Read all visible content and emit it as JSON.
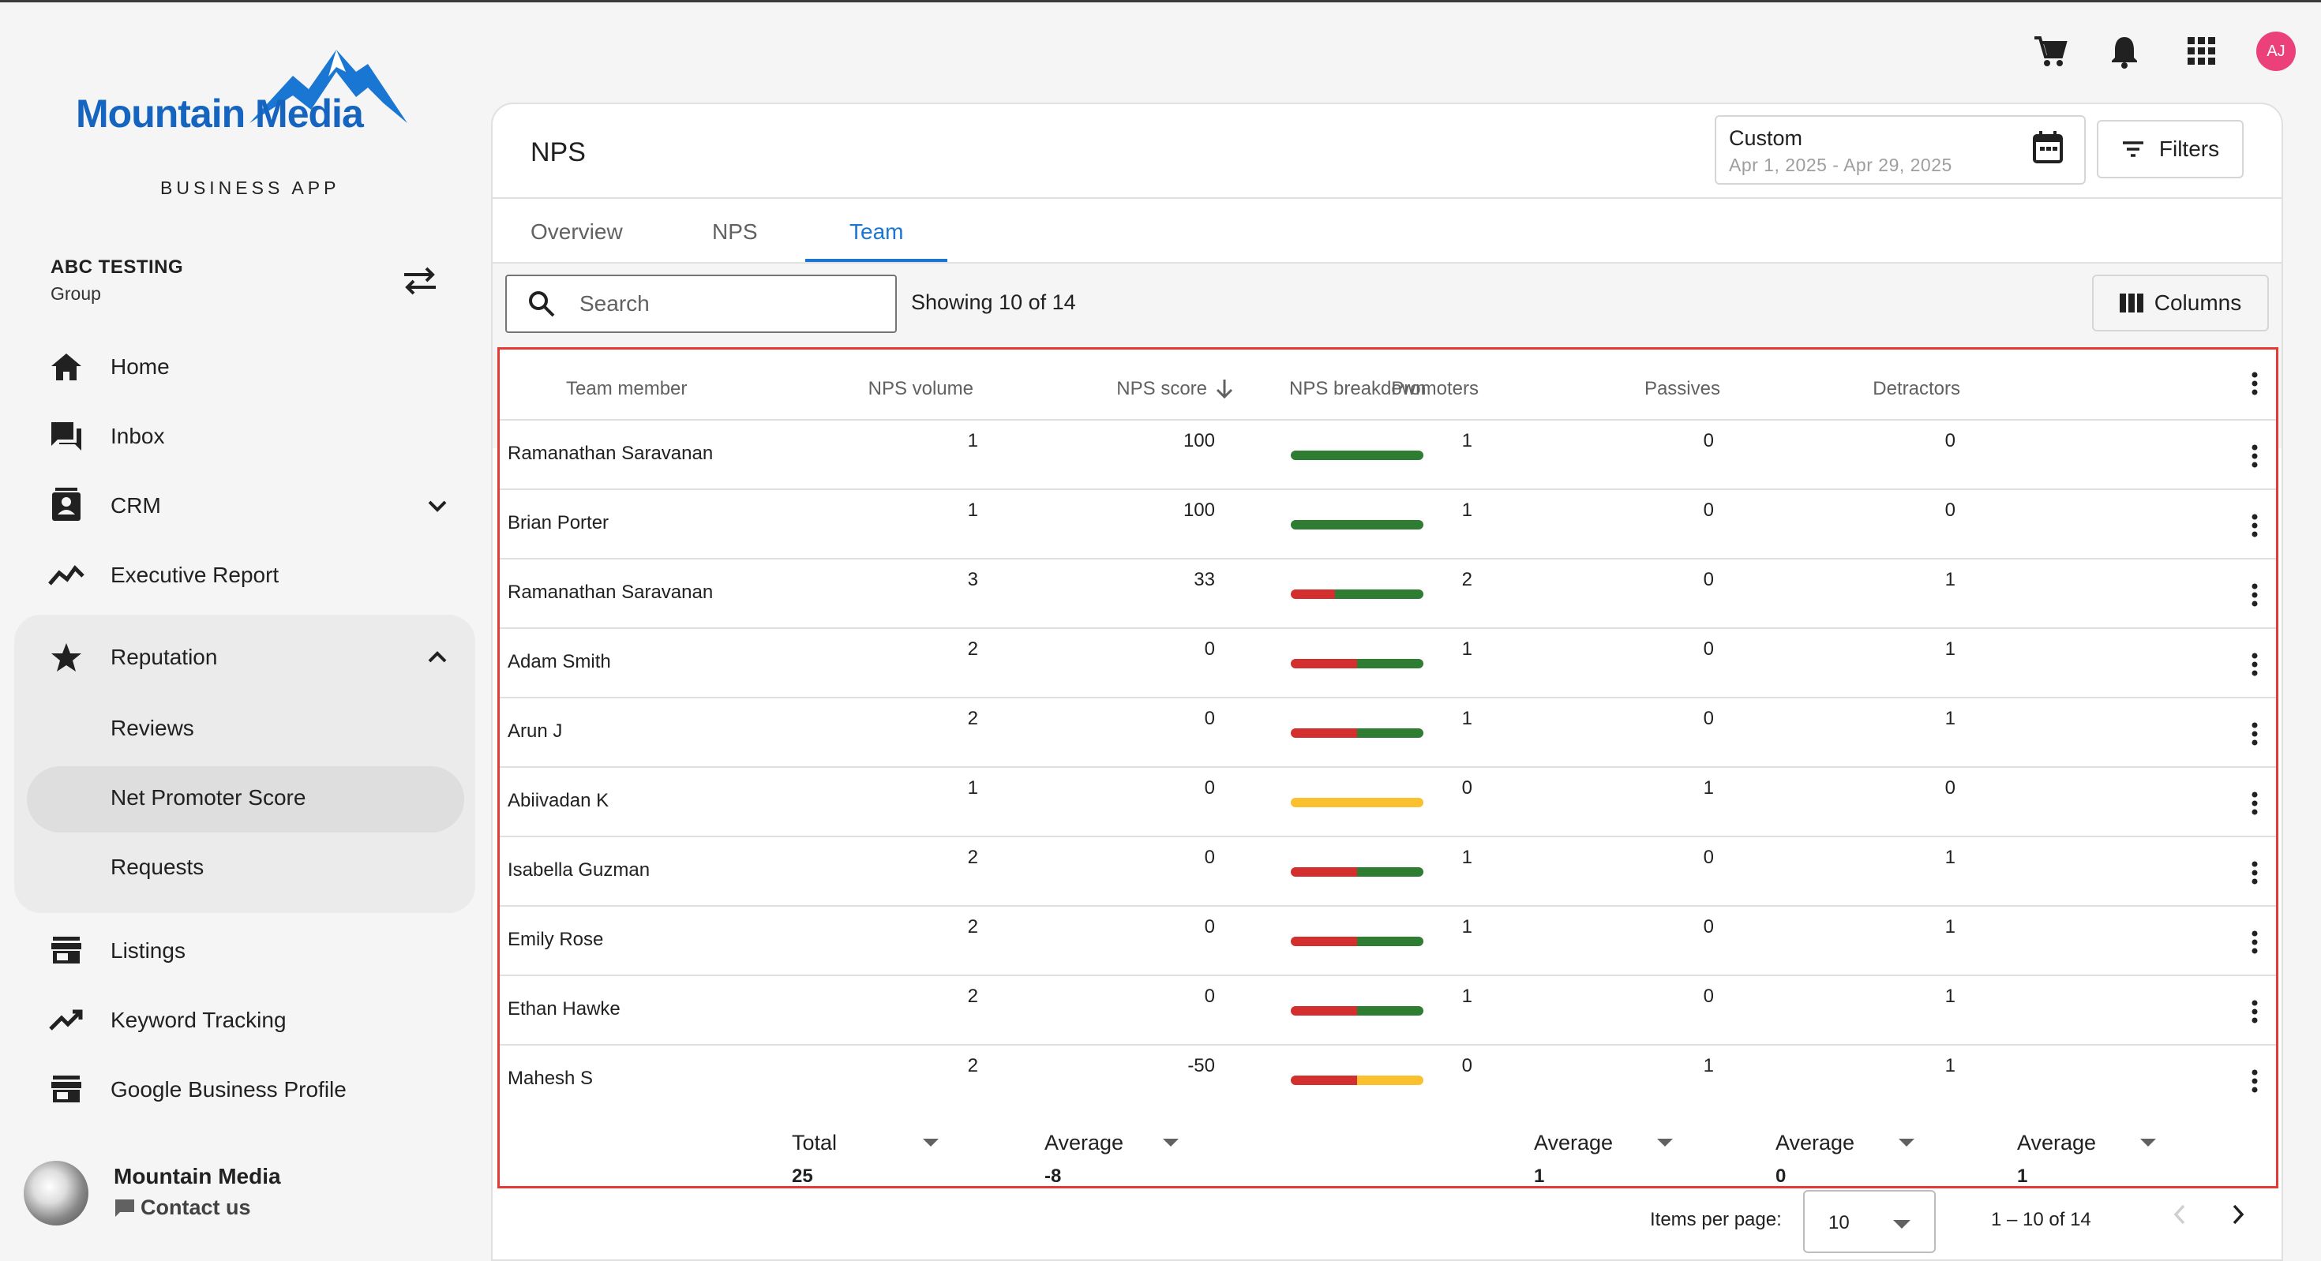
{
  "brand": {
    "logo_text": "Mountain Media",
    "subtitle": "BUSINESS APP",
    "logo_color": "#1565c0"
  },
  "account": {
    "name": "ABC TESTING",
    "type": "Group"
  },
  "sidebar": {
    "items": [
      {
        "label": "Home",
        "icon": "home-icon"
      },
      {
        "label": "Inbox",
        "icon": "inbox-icon"
      },
      {
        "label": "CRM",
        "icon": "contacts-icon"
      },
      {
        "label": "Executive Report",
        "icon": "trend-icon"
      },
      {
        "label": "Reputation",
        "icon": "star-icon"
      },
      {
        "label": "Listings",
        "icon": "store-icon"
      },
      {
        "label": "Keyword Tracking",
        "icon": "trending-up-icon"
      },
      {
        "label": "Google Business Profile",
        "icon": "store-icon"
      }
    ],
    "reputation_sub": [
      "Reviews",
      "Net Promoter Score",
      "Requests"
    ],
    "active_sub": "Net Promoter Score"
  },
  "footer": {
    "title": "Mountain Media",
    "contact": "Contact us"
  },
  "topbar": {
    "avatar_initials": "AJ",
    "avatar_color": "#ec407a"
  },
  "page": {
    "title": "NPS",
    "date_filter": {
      "label": "Custom",
      "range": "Apr 1, 2025 - Apr 29, 2025"
    },
    "filters_label": "Filters",
    "tabs": [
      "Overview",
      "NPS",
      "Team"
    ],
    "active_tab": "Team"
  },
  "toolbar": {
    "search_placeholder": "Search",
    "showing": "Showing 10 of 14",
    "columns_label": "Columns"
  },
  "table": {
    "headers": [
      "Team member",
      "NPS volume",
      "NPS score",
      "NPS breakdown",
      "Promoters",
      "Passives",
      "Detractors"
    ],
    "rows": [
      {
        "name": "Ramanathan Saravanan",
        "volume": "1",
        "score": "100",
        "breakdown": {
          "detractors": 0,
          "passives": 0,
          "promoters": 1
        },
        "promoters": "1",
        "passives": "0",
        "detractors": "0"
      },
      {
        "name": "Brian Porter",
        "volume": "1",
        "score": "100",
        "breakdown": {
          "detractors": 0,
          "passives": 0,
          "promoters": 1
        },
        "promoters": "1",
        "passives": "0",
        "detractors": "0"
      },
      {
        "name": "Ramanathan Saravanan",
        "volume": "3",
        "score": "33",
        "breakdown": {
          "detractors": 1,
          "passives": 0,
          "promoters": 2
        },
        "promoters": "2",
        "passives": "0",
        "detractors": "1"
      },
      {
        "name": "Adam Smith",
        "volume": "2",
        "score": "0",
        "breakdown": {
          "detractors": 1,
          "passives": 0,
          "promoters": 1
        },
        "promoters": "1",
        "passives": "0",
        "detractors": "1"
      },
      {
        "name": "Arun J",
        "volume": "2",
        "score": "0",
        "breakdown": {
          "detractors": 1,
          "passives": 0,
          "promoters": 1
        },
        "promoters": "1",
        "passives": "0",
        "detractors": "1"
      },
      {
        "name": "Abiivadan K",
        "volume": "1",
        "score": "0",
        "breakdown": {
          "detractors": 0,
          "passives": 1,
          "promoters": 0
        },
        "promoters": "0",
        "passives": "1",
        "detractors": "0"
      },
      {
        "name": "Isabella Guzman",
        "volume": "2",
        "score": "0",
        "breakdown": {
          "detractors": 1,
          "passives": 0,
          "promoters": 1
        },
        "promoters": "1",
        "passives": "0",
        "detractors": "1"
      },
      {
        "name": "Emily Rose",
        "volume": "2",
        "score": "0",
        "breakdown": {
          "detractors": 1,
          "passives": 0,
          "promoters": 1
        },
        "promoters": "1",
        "passives": "0",
        "detractors": "1"
      },
      {
        "name": "Ethan Hawke",
        "volume": "2",
        "score": "0",
        "breakdown": {
          "detractors": 1,
          "passives": 0,
          "promoters": 1
        },
        "promoters": "1",
        "passives": "0",
        "detractors": "1"
      },
      {
        "name": "Mahesh S",
        "volume": "2",
        "score": "-50",
        "breakdown": {
          "detractors": 1,
          "passives": 1,
          "promoters": 0
        },
        "promoters": "0",
        "passives": "1",
        "detractors": "1"
      }
    ],
    "footer": {
      "volume": {
        "label": "Total",
        "value": "25"
      },
      "score": {
        "label": "Average",
        "value": "-8"
      },
      "promoters": {
        "label": "Average",
        "value": "1"
      },
      "passives": {
        "label": "Average",
        "value": "0"
      },
      "detractors": {
        "label": "Average",
        "value": "1"
      }
    },
    "colors": {
      "detractor": "#d32f2f",
      "passive": "#fbc02d",
      "promoter": "#2e7d32",
      "highlight_border": "#e53935"
    }
  },
  "pagination": {
    "items_per_page_label": "Items per page:",
    "items_per_page": "10",
    "range": "1 – 10 of 14"
  }
}
